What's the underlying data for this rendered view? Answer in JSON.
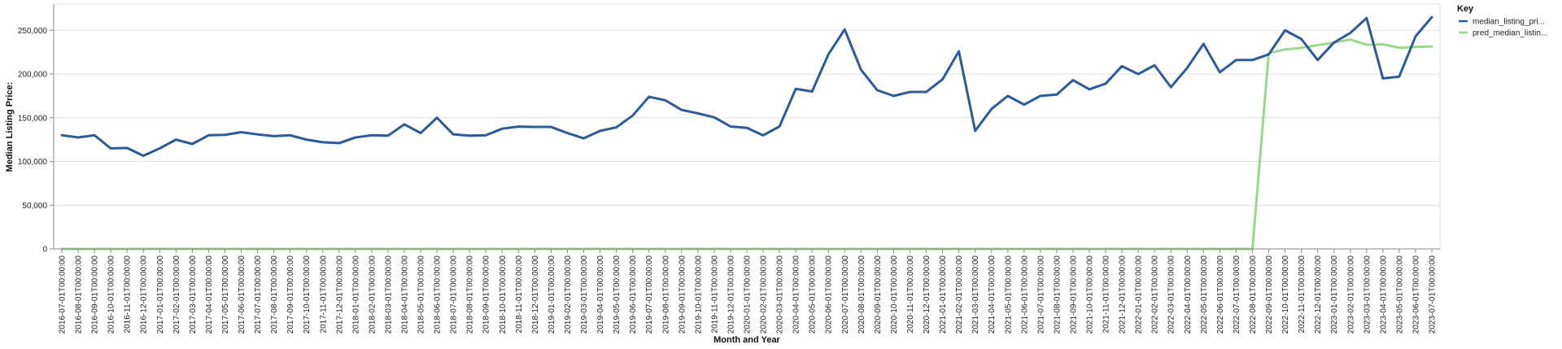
{
  "chart_data": {
    "type": "line",
    "xlabel": "Month and Year",
    "ylabel": "Median Listing Price:",
    "ylim": [
      0,
      280000
    ],
    "yticks": [
      0,
      50000,
      100000,
      150000,
      200000,
      250000
    ],
    "ytick_labels": [
      "0",
      "50,000",
      "100,000",
      "150,000",
      "200,000",
      "250,000"
    ],
    "grid": true,
    "legend": {
      "title": "Key",
      "placement": "top-right"
    },
    "x": [
      "2016-07-01T00:00:00",
      "2016-08-01T00:00:00",
      "2016-09-01T00:00:00",
      "2016-10-01T00:00:00",
      "2016-11-01T00:00:00",
      "2016-12-01T00:00:00",
      "2017-01-01T00:00:00",
      "2017-02-01T00:00:00",
      "2017-03-01T00:00:00",
      "2017-04-01T00:00:00",
      "2017-05-01T00:00:00",
      "2017-06-01T00:00:00",
      "2017-07-01T00:00:00",
      "2017-08-01T00:00:00",
      "2017-09-01T00:00:00",
      "2017-10-01T00:00:00",
      "2017-11-01T00:00:00",
      "2017-12-01T00:00:00",
      "2018-01-01T00:00:00",
      "2018-02-01T00:00:00",
      "2018-03-01T00:00:00",
      "2018-04-01T00:00:00",
      "2018-05-01T00:00:00",
      "2018-06-01T00:00:00",
      "2018-07-01T00:00:00",
      "2018-08-01T00:00:00",
      "2018-09-01T00:00:00",
      "2018-10-01T00:00:00",
      "2018-11-01T00:00:00",
      "2018-12-01T00:00:00",
      "2019-01-01T00:00:00",
      "2019-02-01T00:00:00",
      "2019-03-01T00:00:00",
      "2019-04-01T00:00:00",
      "2019-05-01T00:00:00",
      "2019-06-01T00:00:00",
      "2019-07-01T00:00:00",
      "2019-08-01T00:00:00",
      "2019-09-01T00:00:00",
      "2019-10-01T00:00:00",
      "2019-11-01T00:00:00",
      "2019-12-01T00:00:00",
      "2020-01-01T00:00:00",
      "2020-02-01T00:00:00",
      "2020-03-01T00:00:00",
      "2020-04-01T00:00:00",
      "2020-05-01T00:00:00",
      "2020-06-01T00:00:00",
      "2020-07-01T00:00:00",
      "2020-08-01T00:00:00",
      "2020-09-01T00:00:00",
      "2020-10-01T00:00:00",
      "2020-11-01T00:00:00",
      "2020-12-01T00:00:00",
      "2021-01-01T00:00:00",
      "2021-02-01T00:00:00",
      "2021-03-01T00:00:00",
      "2021-04-01T00:00:00",
      "2021-05-01T00:00:00",
      "2021-06-01T00:00:00",
      "2021-07-01T00:00:00",
      "2021-08-01T00:00:00",
      "2021-09-01T00:00:00",
      "2021-10-01T00:00:00",
      "2021-11-01T00:00:00",
      "2021-12-01T00:00:00",
      "2022-01-01T00:00:00",
      "2022-02-01T00:00:00",
      "2022-03-01T00:00:00",
      "2022-04-01T00:00:00",
      "2022-05-01T00:00:00",
      "2022-06-01T00:00:00",
      "2022-07-01T00:00:00",
      "2022-08-01T00:00:00",
      "2022-09-01T00:00:00",
      "2022-10-01T00:00:00",
      "2022-11-01T00:00:00",
      "2022-12-01T00:00:00",
      "2023-01-01T00:00:00",
      "2023-02-01T00:00:00",
      "2023-03-01T00:00:00",
      "2023-04-01T00:00:00",
      "2023-05-01T00:00:00",
      "2023-06-01T00:00:00",
      "2023-07-01T00:00:00"
    ],
    "series": [
      {
        "name": "median_listing_pri...",
        "color": "#2c5a9a",
        "values": [
          130000,
          127500,
          130000,
          115000,
          115500,
          106500,
          115000,
          125000,
          120000,
          130000,
          130500,
          133500,
          131000,
          129000,
          130000,
          125000,
          122000,
          121000,
          127500,
          130000,
          129500,
          142500,
          132500,
          150000,
          131000,
          129500,
          130000,
          137500,
          139900,
          139500,
          139500,
          132500,
          126500,
          135000,
          139000,
          152500,
          174000,
          170000,
          159000,
          155000,
          150500,
          140000,
          138500,
          129900,
          140000,
          183000,
          180000,
          222500,
          251000,
          205000,
          181500,
          175000,
          179500,
          179500,
          194000,
          226000,
          135000,
          160000,
          175000,
          165000,
          175000,
          176500,
          193000,
          182500,
          189000,
          209000,
          199900,
          210000,
          185000,
          207000,
          234500,
          202000,
          216000,
          216000,
          222500,
          250000,
          240000,
          216000,
          236000,
          247000,
          264000,
          195000,
          197000,
          243000,
          265000
        ]
      },
      {
        "name": "pred_median_listin...",
        "color": "#98d98e",
        "values": [
          0,
          0,
          0,
          0,
          0,
          0,
          0,
          0,
          0,
          0,
          0,
          0,
          0,
          0,
          0,
          0,
          0,
          0,
          0,
          0,
          0,
          0,
          0,
          0,
          0,
          0,
          0,
          0,
          0,
          0,
          0,
          0,
          0,
          0,
          0,
          0,
          0,
          0,
          0,
          0,
          0,
          0,
          0,
          0,
          0,
          0,
          0,
          0,
          0,
          0,
          0,
          0,
          0,
          0,
          0,
          0,
          0,
          0,
          0,
          0,
          0,
          0,
          0,
          0,
          0,
          0,
          0,
          0,
          0,
          0,
          0,
          0,
          0,
          0,
          224000,
          228000,
          230000,
          233000,
          236000,
          239500,
          233500,
          234000,
          230000,
          231000,
          231500
        ]
      }
    ]
  }
}
